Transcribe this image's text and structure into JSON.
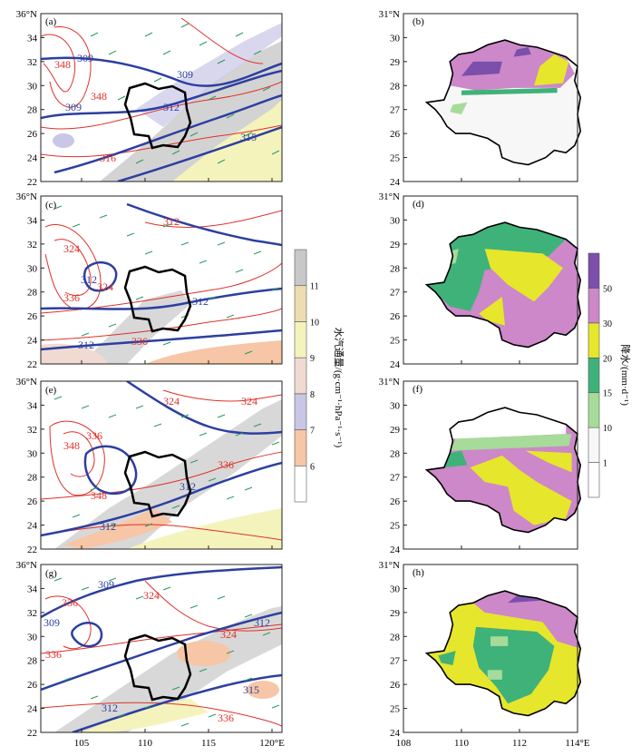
{
  "figure": {
    "left_column": {
      "x_ticks": [
        "105",
        "110",
        "115",
        "120°E"
      ],
      "y_ticks": [
        "22",
        "24",
        "26",
        "28",
        "30",
        "32",
        "34",
        "36°N"
      ],
      "panels": [
        {
          "label": "(a)",
          "contour_labels_red": [
            "348",
            "348",
            "316"
          ],
          "contour_labels_blue": [
            "309",
            "309",
            "309",
            "312",
            "315"
          ]
        },
        {
          "label": "(c)",
          "contour_labels_red": [
            "312",
            "324",
            "336",
            "324",
            "336"
          ],
          "contour_labels_blue": [
            "312",
            "312",
            "312"
          ]
        },
        {
          "label": "(e)",
          "contour_labels_red": [
            "324",
            "336",
            "348",
            "336",
            "324",
            "348"
          ],
          "contour_labels_blue": [
            "312",
            "312"
          ]
        },
        {
          "label": "(g)",
          "contour_labels_red": [
            "336",
            "324",
            "324",
            "336",
            "336"
          ],
          "contour_labels_blue": [
            "309",
            "309",
            "312",
            "315",
            "312"
          ]
        }
      ]
    },
    "right_column": {
      "x_ticks": [
        "108",
        "110",
        "112",
        "114°E"
      ],
      "y_ticks": [
        "24",
        "25",
        "26",
        "27",
        "28",
        "29",
        "30",
        "31°N"
      ],
      "panels": [
        {
          "label": "(b)"
        },
        {
          "label": "(d)"
        },
        {
          "label": "(f)"
        },
        {
          "label": "(h)"
        }
      ]
    },
    "vapor_flux_colorbar": {
      "title": "水汽通量/(g·cm⁻¹·hPa⁻¹·s⁻¹)",
      "ticks": [
        "6",
        "7",
        "8",
        "9",
        "10",
        "11"
      ],
      "colors": [
        "#ffffff",
        "#f6c6a6",
        "#c9c6e6",
        "#f0dad2",
        "#f5f3bc",
        "#eddcb2",
        "#c8c8c8"
      ]
    },
    "precip_colorbar": {
      "title": "降水/(mm·d⁻¹)",
      "ticks": [
        "1",
        "10",
        "15",
        "20",
        "30",
        "50"
      ],
      "colors": [
        "#ffffff",
        "#f7f7f7",
        "#a6db9a",
        "#3fb27a",
        "#e6e62c",
        "#cc88c8",
        "#7b4fab"
      ]
    }
  }
}
